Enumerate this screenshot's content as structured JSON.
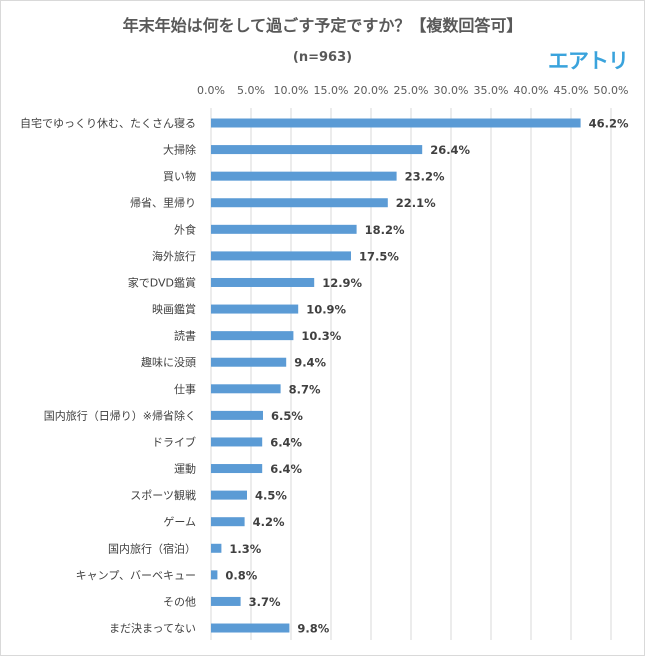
{
  "chart_data": {
    "type": "bar",
    "orientation": "horizontal",
    "title": "年末年始は何をして過ごす予定ですか？【複数回答可】",
    "subtitle": "(n=963)",
    "logo": "エアトリ",
    "xlim": [
      0,
      50
    ],
    "x_ticks": [
      "0.0%",
      "5.0%",
      "10.0%",
      "15.0%",
      "20.0%",
      "25.0%",
      "30.0%",
      "35.0%",
      "40.0%",
      "45.0%",
      "50.0%"
    ],
    "axis_position": "top",
    "grid": true,
    "bar_color": "#5b9bd5",
    "categories": [
      "自宅でゆっくり休む、たくさん寝る",
      "大掃除",
      "買い物",
      "帰省、里帰り",
      "外食",
      "海外旅行",
      "家でDVD鑑賞",
      "映画鑑賞",
      "読書",
      "趣味に没頭",
      "仕事",
      "国内旅行（日帰り）※帰省除く",
      "ドライブ",
      "運動",
      "スポーツ観戦",
      "ゲーム",
      "国内旅行（宿泊）",
      "キャンプ、バーベキュー",
      "その他",
      "まだ決まってない"
    ],
    "values": [
      46.2,
      26.4,
      23.2,
      22.1,
      18.2,
      17.5,
      12.9,
      10.9,
      10.3,
      9.4,
      8.7,
      6.5,
      6.4,
      6.4,
      4.5,
      4.2,
      1.3,
      0.8,
      3.7,
      9.8
    ],
    "value_labels": [
      "46.2%",
      "26.4%",
      "23.2%",
      "22.1%",
      "18.2%",
      "17.5%",
      "12.9%",
      "10.9%",
      "10.3%",
      "9.4%",
      "8.7%",
      "6.5%",
      "6.4%",
      "6.4%",
      "4.5%",
      "4.2%",
      "1.3%",
      "0.8%",
      "3.7%",
      "9.8%"
    ]
  }
}
